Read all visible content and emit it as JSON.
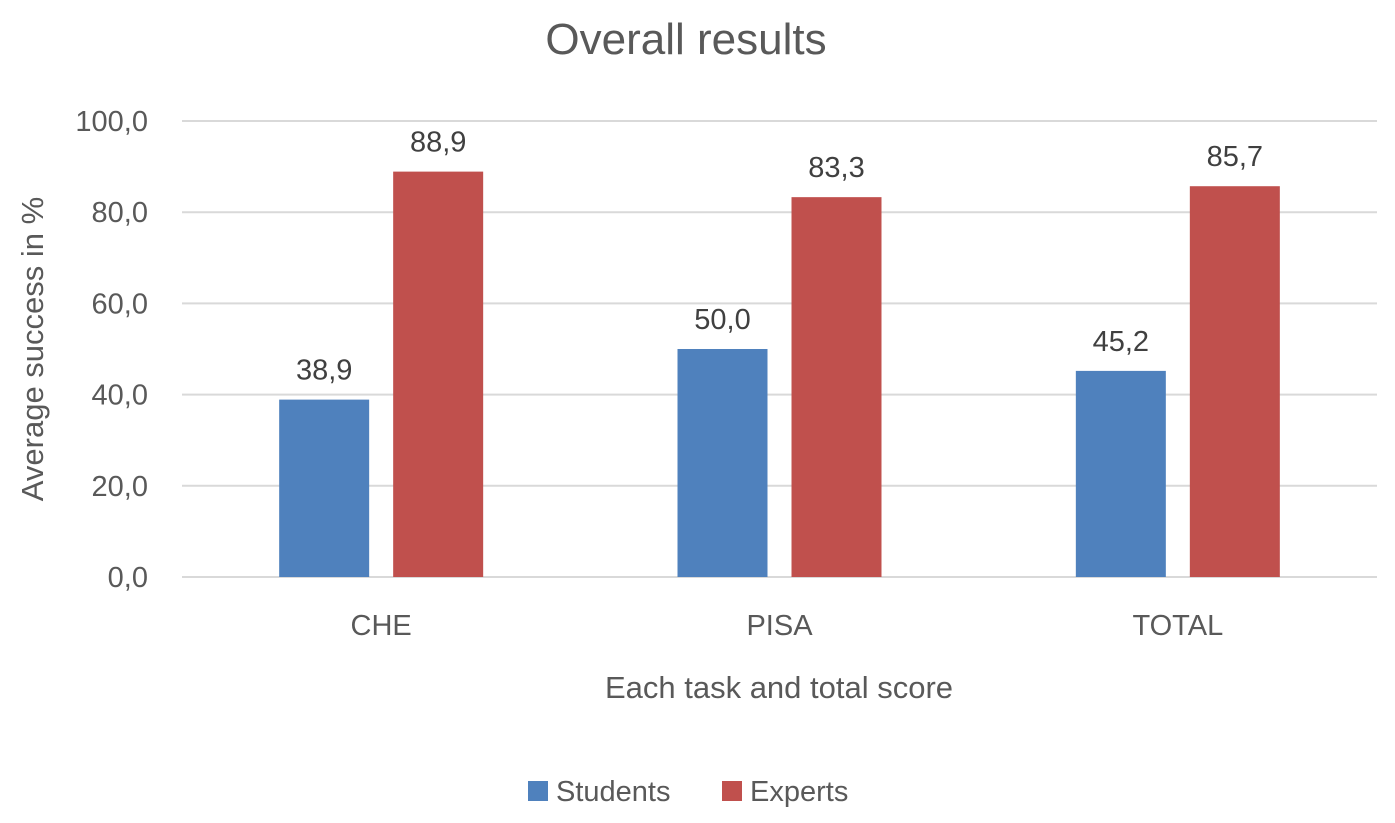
{
  "chart_data": {
    "type": "bar",
    "title": "Overall results",
    "xlabel": "Each task and total score",
    "ylabel": "Average success in %",
    "categories": [
      "CHE",
      "PISA",
      "TOTAL"
    ],
    "series": [
      {
        "name": "Students",
        "color": "#4f81bd",
        "values": [
          38.9,
          50.0,
          45.2
        ],
        "labels": [
          "38,9",
          "50,0",
          "45,2"
        ]
      },
      {
        "name": "Experts",
        "color": "#c0504d",
        "values": [
          88.9,
          83.3,
          85.7
        ],
        "labels": [
          "88,9",
          "83,3",
          "85,7"
        ]
      }
    ],
    "ylim": [
      0,
      100
    ],
    "yticks": [
      0,
      20,
      40,
      60,
      80,
      100
    ],
    "ytick_labels": [
      "0,0",
      "20,0",
      "40,0",
      "60,0",
      "80,0",
      "100,0"
    ],
    "grid": true,
    "legend_position": "bottom"
  }
}
